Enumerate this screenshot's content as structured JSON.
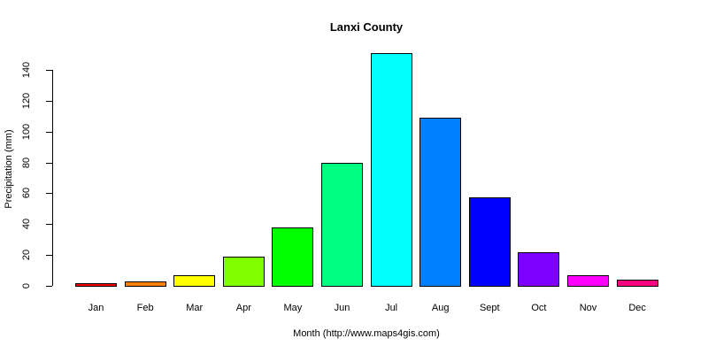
{
  "chart_data": {
    "type": "bar",
    "title": "Lanxi County",
    "xlabel": "Month (http://www.maps4gis.com)",
    "ylabel": "Precipitation (mm)",
    "categories": [
      "Jan",
      "Feb",
      "Mar",
      "Apr",
      "May",
      "Jun",
      "Jul",
      "Aug",
      "Sept",
      "Oct",
      "Nov",
      "Dec"
    ],
    "values": [
      1.5,
      2.7,
      6.7,
      18.8,
      37.7,
      80,
      151,
      109,
      57.2,
      21.6,
      6.7,
      3.8
    ],
    "colors": [
      "#FF0000",
      "#FF8000",
      "#FFFF00",
      "#80FF00",
      "#00FF00",
      "#00FF80",
      "#00FFFF",
      "#0080FF",
      "#0000FF",
      "#8000FF",
      "#FF00FF",
      "#FF0080"
    ],
    "yticks": [
      0,
      20,
      40,
      60,
      80,
      100,
      120,
      140
    ],
    "ylim": [
      0,
      140
    ],
    "grid": false,
    "legend": null
  }
}
